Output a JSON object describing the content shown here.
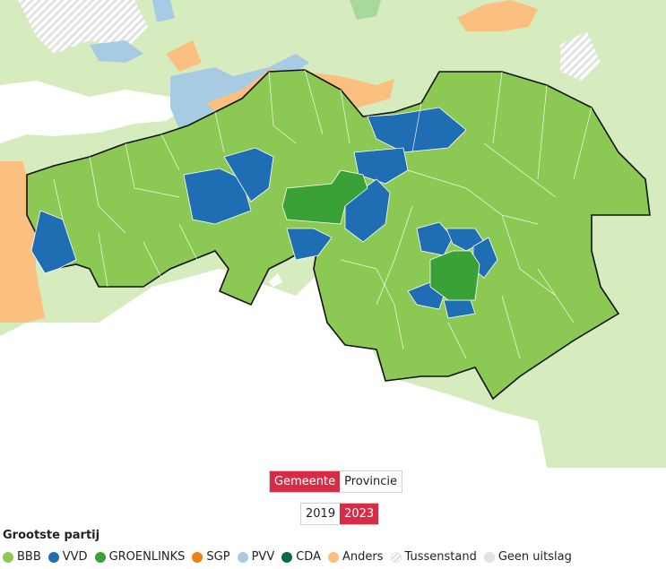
{
  "level_toggle": {
    "options": [
      "Gemeente",
      "Provincie"
    ],
    "active": "Gemeente"
  },
  "year_toggle": {
    "options": [
      "2019",
      "2023"
    ],
    "active": "2023"
  },
  "legend": {
    "title": "Grootste partij",
    "items": [
      {
        "label": "BBB",
        "color": "#8cc954"
      },
      {
        "label": "VVD",
        "color": "#1f6db3"
      },
      {
        "label": "GROENLINKS",
        "color": "#3aa136"
      },
      {
        "label": "SGP",
        "color": "#f07f1a"
      },
      {
        "label": "PVV",
        "color": "#a7cbe3"
      },
      {
        "label": "CDA",
        "color": "#0a6a3d"
      },
      {
        "label": "Anders",
        "color": "#fbbf80"
      },
      {
        "label": "Tussenstand",
        "color": "hatch"
      },
      {
        "label": "Geen uitslag",
        "color": "#e3e3e3"
      }
    ]
  },
  "map": {
    "surroundings_color": "#d6ecbf",
    "province_border_color": "#111111"
  }
}
